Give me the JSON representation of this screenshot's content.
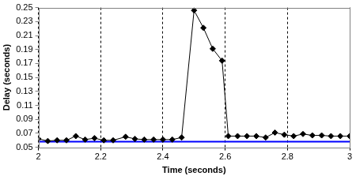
{
  "chart_data": {
    "type": "line",
    "x_label": "Time (seconds)",
    "y_label": "Delay (seconds)",
    "series": [
      {
        "color": "#000000",
        "marker": "diamond",
        "x": [
          2.0,
          2.03,
          2.06,
          2.09,
          2.12,
          2.15,
          2.18,
          2.21,
          2.24,
          2.28,
          2.31,
          2.34,
          2.37,
          2.4,
          2.43,
          2.46,
          2.5,
          2.53,
          2.56,
          2.59,
          2.61,
          2.64,
          2.67,
          2.7,
          2.73,
          2.76,
          2.79,
          2.82,
          2.85,
          2.88,
          2.91,
          2.94,
          2.97,
          3.0
        ],
        "values": [
          0.062,
          0.059,
          0.06,
          0.06,
          0.066,
          0.061,
          0.063,
          0.06,
          0.06,
          0.065,
          0.062,
          0.061,
          0.061,
          0.061,
          0.061,
          0.064,
          0.246,
          0.221,
          0.191,
          0.174,
          0.066,
          0.066,
          0.066,
          0.066,
          0.064,
          0.071,
          0.068,
          0.066,
          0.069,
          0.067,
          0.067,
          0.066,
          0.066,
          0.066
        ]
      },
      {
        "color": "#0000ff",
        "marker": "none",
        "x": [
          2,
          3
        ],
        "values": [
          0.058,
          0.058
        ]
      }
    ],
    "xlim": [
      2,
      3
    ],
    "xticks": [
      2,
      2.2,
      2.4,
      2.6,
      2.8,
      3
    ],
    "ylim": [
      0.05,
      0.25
    ],
    "yticks": [
      0.05,
      0.07,
      0.09,
      0.11,
      0.13,
      0.15,
      0.17,
      0.19,
      0.21,
      0.23,
      0.25
    ],
    "grid": "x"
  }
}
